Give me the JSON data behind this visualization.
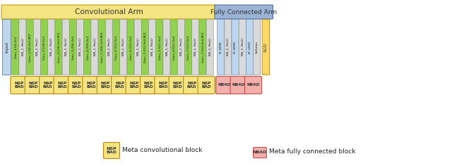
{
  "title_conv": "Convolutional Arm",
  "title_fc": "Fully Connected Arm",
  "conv_arm_color": "#F5E482",
  "fc_arm_color": "#9BB3D4",
  "conv_arm_border": "#C8A000",
  "fc_arm_border": "#5070A0",
  "bg_color": "#FFFFFF",
  "input_label": "Input",
  "sgd_label": "SGD",
  "input_color": "#BDD7EE",
  "sgd_color": "#FFD966",
  "green": "#92D050",
  "gray": "#D9D9D9",
  "blue": "#BDD7EE",
  "meta_conv_color": "#F5E482",
  "meta_conv_border": "#B8860B",
  "meta_fc_color": "#F4AFAB",
  "meta_fc_border": "#C0504D",
  "conv_layers": [
    {
      "label": "Conv_1,64,3x3",
      "color": "green"
    },
    {
      "label": "BN_1, ReLU",
      "color": "gray"
    },
    {
      "label": "Conv_2,64,3x3,M/2",
      "color": "green"
    },
    {
      "label": "BN_1, ReLU",
      "color": "gray"
    },
    {
      "label": "Conv_3,128,3x3",
      "color": "green"
    },
    {
      "label": "BN_1, ReLU",
      "color": "gray"
    },
    {
      "label": "Conv_4,128,3x3,M/2",
      "color": "green"
    },
    {
      "label": "BN_1, ReLU",
      "color": "gray"
    },
    {
      "label": "Conv_5,256,3x3",
      "color": "green"
    },
    {
      "label": "BN_1, ReLU",
      "color": "gray"
    },
    {
      "label": "Conv_6,256,3x3",
      "color": "green"
    },
    {
      "label": "BN_1, ReLU",
      "color": "gray"
    },
    {
      "label": "Conv_7,256,3x3,M/2",
      "color": "green"
    },
    {
      "label": "BN_1, ReLU",
      "color": "gray"
    },
    {
      "label": "Conv_5,512,3x3",
      "color": "green"
    },
    {
      "label": "BN_1, ReLU",
      "color": "gray"
    },
    {
      "label": "Conv_6,512,3x3",
      "color": "green"
    },
    {
      "label": "BN_1, ReLU",
      "color": "gray"
    },
    {
      "label": "Conv_7,512,3x3,M/2",
      "color": "green"
    },
    {
      "label": "BN_1, ReLU",
      "color": "gray"
    },
    {
      "label": "Conv_5,512,3x3",
      "color": "green"
    },
    {
      "label": "BN_1, ReLU",
      "color": "gray"
    },
    {
      "label": "Conv_6,512,3x3",
      "color": "green"
    },
    {
      "label": "BN_1, ReLU",
      "color": "gray"
    },
    {
      "label": "Conv_7,512,3x3",
      "color": "green"
    },
    {
      "label": "BN_1, ReLU",
      "color": "gray"
    },
    {
      "label": "Conv_7,512,3x3,M/2",
      "color": "green"
    },
    {
      "label": "BN_1, ReLU",
      "color": "gray"
    }
  ],
  "fc_layers": [
    {
      "label": "FC,4096",
      "color": "blue"
    },
    {
      "label": "BN_1, ReLU",
      "color": "gray"
    },
    {
      "label": "FC,4096",
      "color": "blue"
    },
    {
      "label": "BN_1, ReLU",
      "color": "gray"
    },
    {
      "label": "FC,1000",
      "color": "blue"
    },
    {
      "label": "Softmax",
      "color": "gray"
    }
  ],
  "legend_meta_conv_label": "Meta convolutional block",
  "legend_meta_fc_label": "Meta fully connected block",
  "legend_meta_conv_text": "NSP\nBAD",
  "legend_meta_fc_text": "NBAD",
  "fig_w": 6.4,
  "fig_h": 2.36,
  "dpi": 100
}
